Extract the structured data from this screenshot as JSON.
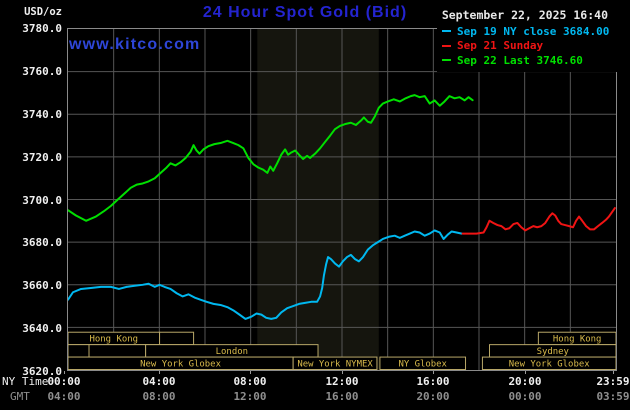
{
  "header": {
    "units": "USD/oz",
    "title": "24 Hour Spot Gold (Bid)",
    "watermark": "www.kitco.com",
    "timestamp": "September 22, 2025 16:40"
  },
  "legend": {
    "items": [
      {
        "label": "Sep 19 NY close 3684.00",
        "color": "#00b8f0"
      },
      {
        "label": "Sep 21 Sunday",
        "color": "#f01414"
      },
      {
        "label": "Sep 22 Last 3746.60",
        "color": "#00e000"
      }
    ]
  },
  "axis": {
    "ny_time_label": "NY Time",
    "gmt_label": "GMT",
    "y_ticks": [
      "3780.0",
      "3760.0",
      "3740.0",
      "3720.0",
      "3700.0",
      "3680.0",
      "3660.0",
      "3640.0",
      "3620.0"
    ],
    "ny_ticks": [
      "00:00",
      "04:00",
      "08:00",
      "12:00",
      "16:00",
      "20:00",
      "23:59"
    ],
    "gmt_ticks": [
      "04:00",
      "08:00",
      "12:00",
      "16:00",
      "20:00",
      "00:00",
      "03:59"
    ]
  },
  "colors": {
    "background": "#000000",
    "title_blue": "#2424d0",
    "watermark_blue": "#2e46d8",
    "grid": "#565656",
    "frame": "#8a8a8a",
    "band": "#15150e",
    "axis_text": "#f0f0f0",
    "gmt_text": "#8f8f8f",
    "session_border": "#b9a869",
    "session_text": "#d8ba4c"
  },
  "chart_data": {
    "type": "line",
    "title": "24 Hour Spot Gold (Bid)",
    "xlabel": "NY Time",
    "ylabel": "USD/oz",
    "x_range_hours": [
      0,
      24
    ],
    "ylim": [
      3620,
      3780
    ],
    "y_gridline_step": 20,
    "x_gridline_step_hours": 2,
    "grid": true,
    "legend_position": "top-right",
    "shaded_band_hours": [
      8.29,
      13.61
    ],
    "series": [
      {
        "name": "Sep 19 NY close",
        "close_value": 3684.0,
        "color": "#00b8f0",
        "points": [
          [
            0,
            3653
          ],
          [
            0.22,
            3656.5
          ],
          [
            0.57,
            3658
          ],
          [
            1,
            3658.5
          ],
          [
            1.44,
            3659
          ],
          [
            1.88,
            3659
          ],
          [
            2.23,
            3658
          ],
          [
            2.57,
            3659
          ],
          [
            2.92,
            3659.5
          ],
          [
            3.27,
            3660
          ],
          [
            3.53,
            3660.5
          ],
          [
            3.8,
            3659
          ],
          [
            4.01,
            3660
          ],
          [
            4.23,
            3659
          ],
          [
            4.49,
            3658
          ],
          [
            4.76,
            3656
          ],
          [
            5.02,
            3654.5
          ],
          [
            5.28,
            3655.5
          ],
          [
            5.54,
            3654
          ],
          [
            5.8,
            3653
          ],
          [
            6.07,
            3652
          ],
          [
            6.37,
            3651
          ],
          [
            6.68,
            3650.5
          ],
          [
            6.98,
            3649.5
          ],
          [
            7.24,
            3648
          ],
          [
            7.51,
            3646
          ],
          [
            7.77,
            3644
          ],
          [
            8.03,
            3645
          ],
          [
            8.25,
            3646.5
          ],
          [
            8.47,
            3646
          ],
          [
            8.68,
            3644.5
          ],
          [
            8.9,
            3644
          ],
          [
            9.12,
            3644.5
          ],
          [
            9.34,
            3647
          ],
          [
            9.6,
            3649
          ],
          [
            9.86,
            3650
          ],
          [
            10.12,
            3651
          ],
          [
            10.38,
            3651.5
          ],
          [
            10.65,
            3652
          ],
          [
            10.91,
            3652
          ],
          [
            11.04,
            3654.5
          ],
          [
            11.13,
            3658.5
          ],
          [
            11.21,
            3664.5
          ],
          [
            11.3,
            3669.5
          ],
          [
            11.39,
            3673
          ],
          [
            11.52,
            3672
          ],
          [
            11.69,
            3670
          ],
          [
            11.87,
            3668.5
          ],
          [
            12.04,
            3671
          ],
          [
            12.22,
            3673
          ],
          [
            12.39,
            3674
          ],
          [
            12.57,
            3672
          ],
          [
            12.74,
            3671
          ],
          [
            12.92,
            3673
          ],
          [
            13.13,
            3676.5
          ],
          [
            13.35,
            3678.5
          ],
          [
            13.57,
            3680
          ],
          [
            13.79,
            3681.5
          ],
          [
            14.05,
            3682.5
          ],
          [
            14.31,
            3683
          ],
          [
            14.53,
            3682
          ],
          [
            14.75,
            3683
          ],
          [
            14.97,
            3684
          ],
          [
            15.18,
            3685
          ],
          [
            15.4,
            3684.5
          ],
          [
            15.62,
            3683
          ],
          [
            15.84,
            3684
          ],
          [
            16.06,
            3685.5
          ],
          [
            16.28,
            3684.5
          ],
          [
            16.45,
            3681.5
          ],
          [
            16.63,
            3683.5
          ],
          [
            16.8,
            3685
          ],
          [
            17.02,
            3684.5
          ],
          [
            17.24,
            3684
          ]
        ]
      },
      {
        "name": "Sep 21 Sunday",
        "color": "#f01414",
        "points": [
          [
            17.28,
            3684
          ],
          [
            17.59,
            3684
          ],
          [
            17.89,
            3684
          ],
          [
            18.2,
            3684.5
          ],
          [
            18.33,
            3687
          ],
          [
            18.46,
            3690
          ],
          [
            18.63,
            3689
          ],
          [
            18.81,
            3688
          ],
          [
            18.98,
            3687.5
          ],
          [
            19.16,
            3686
          ],
          [
            19.33,
            3686.5
          ],
          [
            19.51,
            3688.5
          ],
          [
            19.68,
            3689
          ],
          [
            19.85,
            3687
          ],
          [
            20.03,
            3685.5
          ],
          [
            20.2,
            3686.5
          ],
          [
            20.38,
            3687.5
          ],
          [
            20.55,
            3687
          ],
          [
            20.73,
            3687.5
          ],
          [
            20.9,
            3689
          ],
          [
            21.08,
            3692
          ],
          [
            21.21,
            3693.5
          ],
          [
            21.34,
            3692.5
          ],
          [
            21.47,
            3690
          ],
          [
            21.6,
            3688.5
          ],
          [
            21.77,
            3688
          ],
          [
            21.95,
            3687.5
          ],
          [
            22.12,
            3687
          ],
          [
            22.25,
            3690
          ],
          [
            22.38,
            3692
          ],
          [
            22.52,
            3690
          ],
          [
            22.69,
            3687.5
          ],
          [
            22.86,
            3686
          ],
          [
            23.04,
            3686
          ],
          [
            23.21,
            3687.5
          ],
          [
            23.39,
            3689
          ],
          [
            23.56,
            3690.5
          ],
          [
            23.69,
            3692
          ],
          [
            23.82,
            3694
          ],
          [
            23.95,
            3696
          ]
        ]
      },
      {
        "name": "Sep 22 Last",
        "last_value": 3746.6,
        "color": "#00e000",
        "points": [
          [
            0,
            3695
          ],
          [
            0.35,
            3692.5
          ],
          [
            0.79,
            3690
          ],
          [
            1.22,
            3692
          ],
          [
            1.57,
            3694.5
          ],
          [
            1.88,
            3697
          ],
          [
            2.18,
            3700
          ],
          [
            2.49,
            3703
          ],
          [
            2.75,
            3705.5
          ],
          [
            3.01,
            3707
          ],
          [
            3.27,
            3707.5
          ],
          [
            3.53,
            3708.5
          ],
          [
            3.8,
            3710
          ],
          [
            4.06,
            3712.5
          ],
          [
            4.32,
            3715
          ],
          [
            4.49,
            3717
          ],
          [
            4.71,
            3716
          ],
          [
            4.93,
            3717.5
          ],
          [
            5.15,
            3719.5
          ],
          [
            5.37,
            3722.5
          ],
          [
            5.5,
            3725.5
          ],
          [
            5.63,
            3723
          ],
          [
            5.76,
            3721.5
          ],
          [
            5.93,
            3723.5
          ],
          [
            6.15,
            3725
          ],
          [
            6.41,
            3726
          ],
          [
            6.68,
            3726.5
          ],
          [
            6.98,
            3727.5
          ],
          [
            7.24,
            3726.5
          ],
          [
            7.46,
            3725.5
          ],
          [
            7.68,
            3724
          ],
          [
            7.9,
            3719.5
          ],
          [
            8.12,
            3716.5
          ],
          [
            8.33,
            3715
          ],
          [
            8.55,
            3714
          ],
          [
            8.73,
            3712.5
          ],
          [
            8.86,
            3715.5
          ],
          [
            8.99,
            3713.5
          ],
          [
            9.16,
            3717
          ],
          [
            9.34,
            3721
          ],
          [
            9.51,
            3723.5
          ],
          [
            9.64,
            3721
          ],
          [
            9.77,
            3722
          ],
          [
            9.95,
            3723
          ],
          [
            10.12,
            3721
          ],
          [
            10.3,
            3719
          ],
          [
            10.47,
            3720.5
          ],
          [
            10.6,
            3719.5
          ],
          [
            10.82,
            3721.5
          ],
          [
            11.04,
            3724
          ],
          [
            11.26,
            3727
          ],
          [
            11.48,
            3730
          ],
          [
            11.69,
            3733
          ],
          [
            11.91,
            3734.5
          ],
          [
            12.17,
            3735.5
          ],
          [
            12.39,
            3736
          ],
          [
            12.61,
            3735
          ],
          [
            12.83,
            3737
          ],
          [
            12.96,
            3738.5
          ],
          [
            13.13,
            3736.5
          ],
          [
            13.27,
            3736
          ],
          [
            13.44,
            3739
          ],
          [
            13.61,
            3743
          ],
          [
            13.79,
            3745
          ],
          [
            14.01,
            3746
          ],
          [
            14.27,
            3747
          ],
          [
            14.53,
            3746
          ],
          [
            14.79,
            3747.5
          ],
          [
            15.01,
            3748.5
          ],
          [
            15.18,
            3749
          ],
          [
            15.4,
            3748
          ],
          [
            15.62,
            3748.5
          ],
          [
            15.84,
            3745
          ],
          [
            16.06,
            3746.5
          ],
          [
            16.28,
            3744
          ],
          [
            16.49,
            3746
          ],
          [
            16.71,
            3748.5
          ],
          [
            16.93,
            3747.5
          ],
          [
            17.15,
            3748
          ],
          [
            17.37,
            3746.5
          ],
          [
            17.54,
            3748
          ],
          [
            17.72,
            3746.6
          ]
        ]
      }
    ]
  },
  "sessions": {
    "rows": [
      {
        "cells": [
          {
            "from": 0,
            "to": 4.01,
            "label": "Hong Kong"
          },
          {
            "from": 4.01,
            "to": 5.5,
            "label": ""
          },
          {
            "from": 20.6,
            "to": 24,
            "label": "Hong Kong"
          }
        ]
      },
      {
        "cells": [
          {
            "from": 0,
            "to": 0.92,
            "label": ""
          },
          {
            "from": 0.92,
            "to": 3.4,
            "label": ""
          },
          {
            "from": 3.4,
            "to": 10.95,
            "label": "London"
          },
          {
            "from": 18.46,
            "to": 24,
            "label": "Sydney"
          }
        ]
      },
      {
        "cells": [
          {
            "from": 0,
            "to": 9.86,
            "label": "New York Globex"
          },
          {
            "from": 9.86,
            "to": 13.53,
            "label": "New York NYMEX"
          },
          {
            "from": 13.66,
            "to": 17.41,
            "label": "NY Globex"
          },
          {
            "from": 18.15,
            "to": 24,
            "label": "New York Globex"
          }
        ]
      }
    ]
  }
}
